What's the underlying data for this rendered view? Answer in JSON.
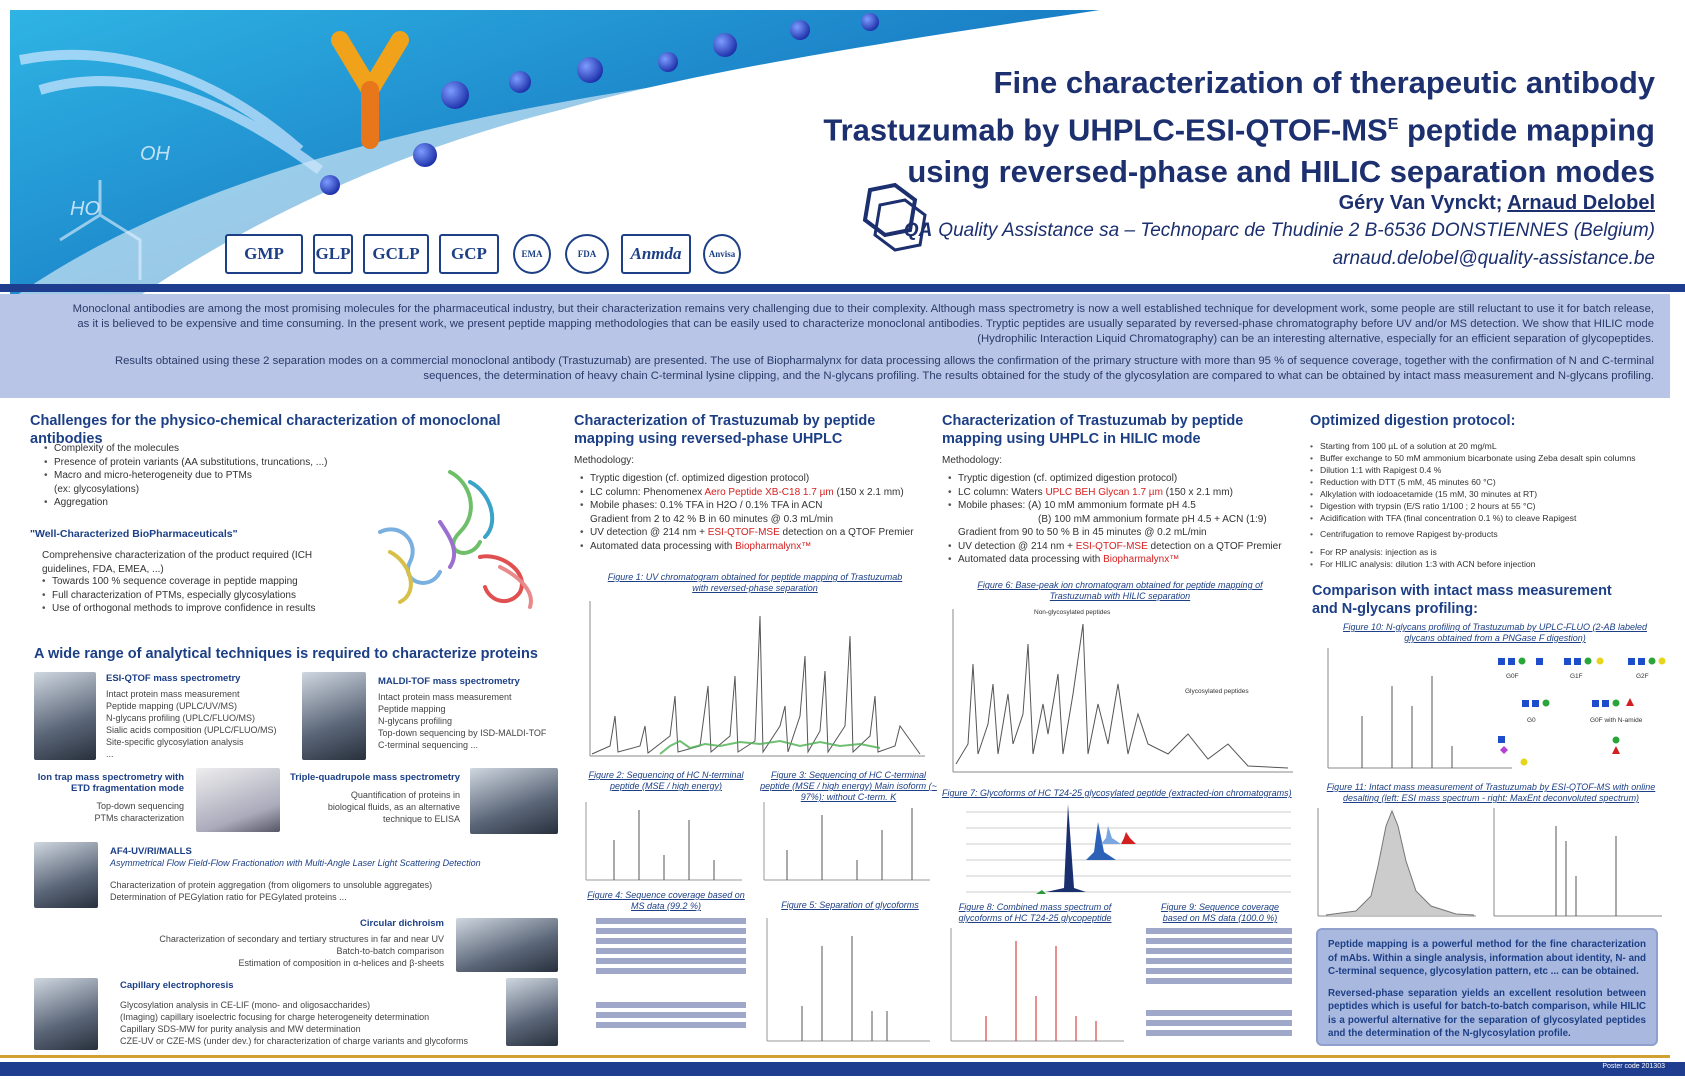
{
  "title": {
    "line1": "Fine characterization of therapeutic antibody",
    "line2_pre": "Trastuzumab by UHPLC-ESI-QTOF-MS",
    "line2_sup": "E",
    "line2_post": " peptide mapping",
    "line3": "using reversed-phase and HILIC separation modes"
  },
  "authors": {
    "author1": "Géry Van Vynckt; ",
    "author2": "Arnaud Delobel"
  },
  "affiliation": "Quality Assistance sa – Technoparc de Thudinie 2  B-6536  DONSTIENNES (Belgium)",
  "email": "arnaud.delobel@quality-assistance.be",
  "qa_logo_text": "QA",
  "banner_text": {
    "oh": "OH",
    "ho": "HO"
  },
  "logos": [
    "GMP",
    "GLP",
    "GCLP",
    "GCP",
    "EMA",
    "FDA",
    "Anvisa"
  ],
  "abstract": {
    "p1": "Monoclonal antibodies are among the most promising molecules for the pharmaceutical industry, but their characterization remains very challenging due to their complexity. Although mass spectrometry is now a well established technique for development work, some people are still reluctant to use it for batch release, as it is believed to be expensive and time consuming. In the present work, we present peptide mapping methodologies that can be easily used to characterize monoclonal antibodies. Tryptic peptides are usually separated by reversed-phase chromatography before UV and/or MS detection. We show that HILIC mode (Hydrophilic Interaction Liquid Chromatography) can be an interesting alternative, especially for an efficient separation of glycopeptides.",
    "p2": "Results obtained using these 2 separation modes on a commercial monoclonal antibody (Trastuzumab) are presented. The use of Biopharmalynx for data processing allows the confirmation of the primary structure with more than 95 % of sequence coverage, together with the confirmation of N and C-terminal sequences, the determination of heavy chain C-terminal lysine clipping, and the N-glycans profiling. The results obtained for the study of the glycosylation are compared to what can be obtained by intact mass measurement and N-glycans profiling."
  },
  "challenges": {
    "title": "Challenges for the physico-chemical characterization of monoclonal antibodies",
    "items": [
      "Complexity of the molecules",
      "Presence of protein variants (AA substitutions, truncations, ...)",
      "Macro and micro-heterogeneity due to PTMs",
      "(ex: glycosylations)",
      "Aggregation"
    ],
    "wcb_title": "\"Well-Characterized BioPharmaceuticals\"",
    "wcb_intro": "Comprehensive characterization of the product required (ICH guidelines, FDA, EMEA, ...)",
    "wcb_items": [
      "Towards 100 % sequence coverage in peptide mapping",
      "Full characterization of PTMs, especially glycosylations",
      "Use of orthogonal methods to improve confidence in results"
    ]
  },
  "techniques": {
    "title": "A wide range of analytical techniques is required to characterize proteins",
    "esi": {
      "h": "ESI-QTOF mass spectrometry",
      "lines": [
        "Intact protein mass measurement",
        "Peptide mapping (UPLC/UV/MS)",
        "N-glycans profiling (UPLC/FLUO/MS)",
        "Sialic acids composition (UPLC/FLUO/MS)",
        "Site-specific glycosylation analysis",
        "..."
      ]
    },
    "maldi": {
      "h": "MALDI-TOF mass spectrometry",
      "lines": [
        "Intact protein mass measurement",
        "Peptide mapping",
        "N-glycans profiling",
        "Top-down sequencing by ISD-MALDI-TOF",
        "C-terminal sequencing ..."
      ]
    },
    "iontrap": {
      "h": "Ion trap mass spectrometry with ETD fragmentation mode",
      "lines": [
        "Top-down sequencing",
        "PTMs characterization"
      ]
    },
    "tq": {
      "h": "Triple-quadrupole mass spectrometry",
      "lines": [
        "Quantification of proteins in",
        "biological fluids, as an alternative",
        "technique to ELISA"
      ]
    },
    "af4": {
      "h": "AF4-UV/RI/MALLS",
      "sub": "Asymmetrical Flow Field-Flow Fractionation with Multi-Angle Laser Light Scattering Detection",
      "lines": [
        "Characterization of protein aggregation (from oligomers to unsoluble aggregates)",
        "Determination of PEGylation ratio for PEGylated proteins ..."
      ]
    },
    "cd": {
      "h": "Circular dichroism",
      "lines": [
        "Characterization of secondary and tertiary structures in far and near UV",
        "Batch-to-batch comparison",
        "Estimation of composition in α-helices and β-sheets"
      ]
    },
    "ce": {
      "h": "Capillary electrophoresis",
      "lines": [
        "Glycosylation analysis in CE-LIF (mono- and oligosaccharides)",
        "(Imaging) capillary isoelectric focusing for charge heterogeneity determination",
        "Capillary SDS-MW for purity analysis and MW determination",
        "CZE-UV or CZE-MS (under dev.) for characterization of charge variants and glycoforms"
      ]
    }
  },
  "rp": {
    "title": "Characterization of Trastuzumab by peptide mapping using reversed-phase UHPLC",
    "meth": "Methodology:",
    "items": [
      [
        "Tryptic digestion (cf. optimized digestion protocol)",
        "",
        ""
      ],
      [
        "LC column: Phenomenex ",
        "Aero Peptide XB-C18 1.7 µm",
        " (150 x 2.1 mm)"
      ],
      [
        "Mobile phases: 0.1% TFA in H2O / 0.1% TFA in ACN",
        "",
        ""
      ],
      [
        "Gradient from 2 to 42 % B in 60 minutes @ 0.3 mL/min",
        "",
        ""
      ],
      [
        "UV detection @ 214 nm + ",
        "ESI-QTOF-MSE",
        " detection on a QTOF Premier"
      ],
      [
        "Automated data processing with ",
        "Biopharmalynx™",
        ""
      ]
    ],
    "fig1": "Figure 1: UV chromatogram obtained for peptide mapping of Trastuzumab with reversed-phase separation",
    "fig2": "Figure 2: Sequencing of HC N-terminal peptide (MSE / high energy)",
    "fig3": "Figure 3: Sequencing of HC C-terminal peptide (MSE / high energy) Main isoform (~ 97%): without C-term. K",
    "fig4": "Figure 4: Sequence coverage based on MS data (99.2 %)",
    "fig5": "Figure 5: Separation of glycoforms"
  },
  "hilic": {
    "title": "Characterization of Trastuzumab by peptide mapping using UHPLC in HILIC mode",
    "meth": "Methodology:",
    "items": [
      [
        "Tryptic digestion (cf. optimized digestion protocol)",
        "",
        ""
      ],
      [
        "LC column: Waters ",
        "UPLC BEH Glycan 1.7 µm",
        " (150 x 2.1 mm)"
      ],
      [
        "Mobile phases: (A) 10 mM ammonium formate pH 4.5",
        "",
        ""
      ],
      [
        "(B) 100 mM ammonium formate pH 4.5 + ACN (1:9)",
        "",
        ""
      ],
      [
        "Gradient from 90 to 50 % B in 45 minutes @ 0.2 mL/min",
        "",
        ""
      ],
      [
        "UV detection @ 214 nm + ",
        "ESI-QTOF-MSE",
        " detection on a QTOF Premier"
      ],
      [
        "Automated data processing with ",
        "Biopharmalynx™",
        ""
      ]
    ],
    "fig6": "Figure 6: Base-peak ion chromatogram obtained for peptide mapping of Trastuzumab with HILIC separation",
    "fig6_label1": "Non-glycosylated peptides",
    "fig6_label2": "Glycosylated peptides",
    "fig7": "Figure 7: Glycoforms of HC T24-25 glycosylated peptide (extracted-ion chromatograms)",
    "fig8": "Figure 8: Combined mass spectrum of glycoforms of HC T24-25 glycopeptide",
    "fig9": "Figure 9: Sequence coverage based on MS data (100.0 %)"
  },
  "digestion": {
    "title": "Optimized digestion protocol:",
    "items": [
      "Starting from 100 µL of a solution at 20 mg/mL",
      "Buffer exchange to 50 mM ammonium bicarbonate using Zeba desalt spin columns",
      "Dilution 1:1 with Rapigest 0.4 %",
      "Reduction with DTT (5 mM, 45 minutes 60 °C)",
      "Alkylation with iodoacetamide (15 mM, 30 minutes at RT)",
      "Digestion with trypsin (E/S ratio 1/100 ; 2 hours at 55 °C)",
      "Acidification with TFA (final concentration 0.1 %) to cleave Rapigest",
      "Centrifugation to remove Rapigest by-products"
    ],
    "items2": [
      "For RP analysis: injection as is",
      "For HILIC analysis: dilution 1:3 with ACN before injection"
    ]
  },
  "comparison": {
    "title": "Comparison with intact mass measurement and N-glycans profiling:",
    "fig10": "Figure 10: N-glycans profiling of Trastuzumab by UPLC-FLUO (2-AB labeled glycans obtained from a PNGase F digestion)",
    "fig11": "Figure 11: Intact mass measurement of Trastuzumab by ESI-QTOF-MS with online desalting (left: ESI mass spectrum - right: MaxEnt deconvoluted spectrum)",
    "glycan_labels": [
      "G0F",
      "G1F",
      "G2F",
      "G0",
      "G0F with N-amide"
    ]
  },
  "conclusion": {
    "p1": "Peptide mapping is a powerful method for the fine characterization of mAbs. Within a single analysis, information about identity, N- and C-terminal sequence, glycosylation pattern, etc ... can be obtained.",
    "p2": "Reversed-phase separation yields an excellent resolution between peptides which is useful for batch-to-batch comparison, while HILIC is a powerful alternative for the separation of glycosylated peptides and the determination of the N-glycosylation profile."
  },
  "footer_id": "Poster code 201303"
}
